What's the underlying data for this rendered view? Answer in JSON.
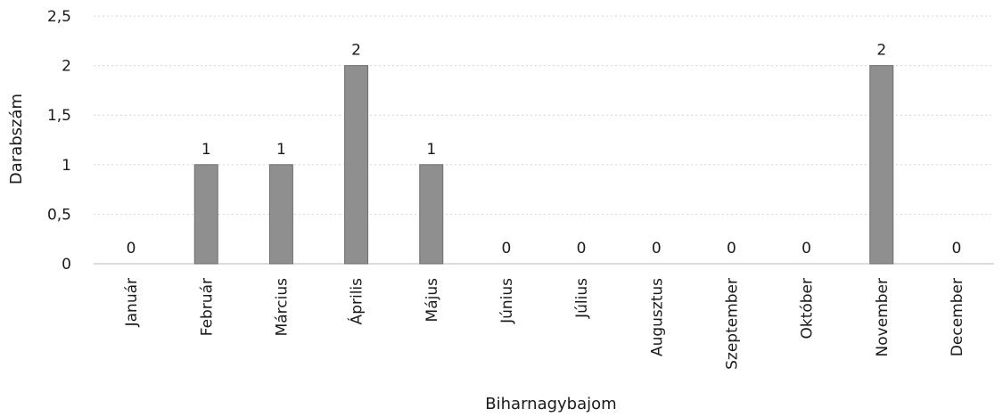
{
  "chart_data": {
    "type": "bar",
    "categories": [
      "Január",
      "Február",
      "Március",
      "Április",
      "Május",
      "Június",
      "Július",
      "Augusztus",
      "Szeptember",
      "Október",
      "November",
      "December"
    ],
    "values": [
      0,
      1,
      1,
      2,
      1,
      0,
      0,
      0,
      0,
      0,
      2,
      0
    ],
    "data_labels": [
      "0",
      "1",
      "1",
      "2",
      "1",
      "0",
      "0",
      "0",
      "0",
      "0",
      "2",
      "0"
    ],
    "xlabel": "Biharnagybajom",
    "ylabel": "Darabszám",
    "ylim": [
      0,
      2.5
    ],
    "yticks": [
      0,
      0.5,
      1,
      1.5,
      2,
      2.5
    ],
    "ytick_labels": [
      "0",
      "0,5",
      "1",
      "1,5",
      "2",
      "2,5"
    ],
    "grid": true,
    "bar_color": "#8f8f8f"
  }
}
